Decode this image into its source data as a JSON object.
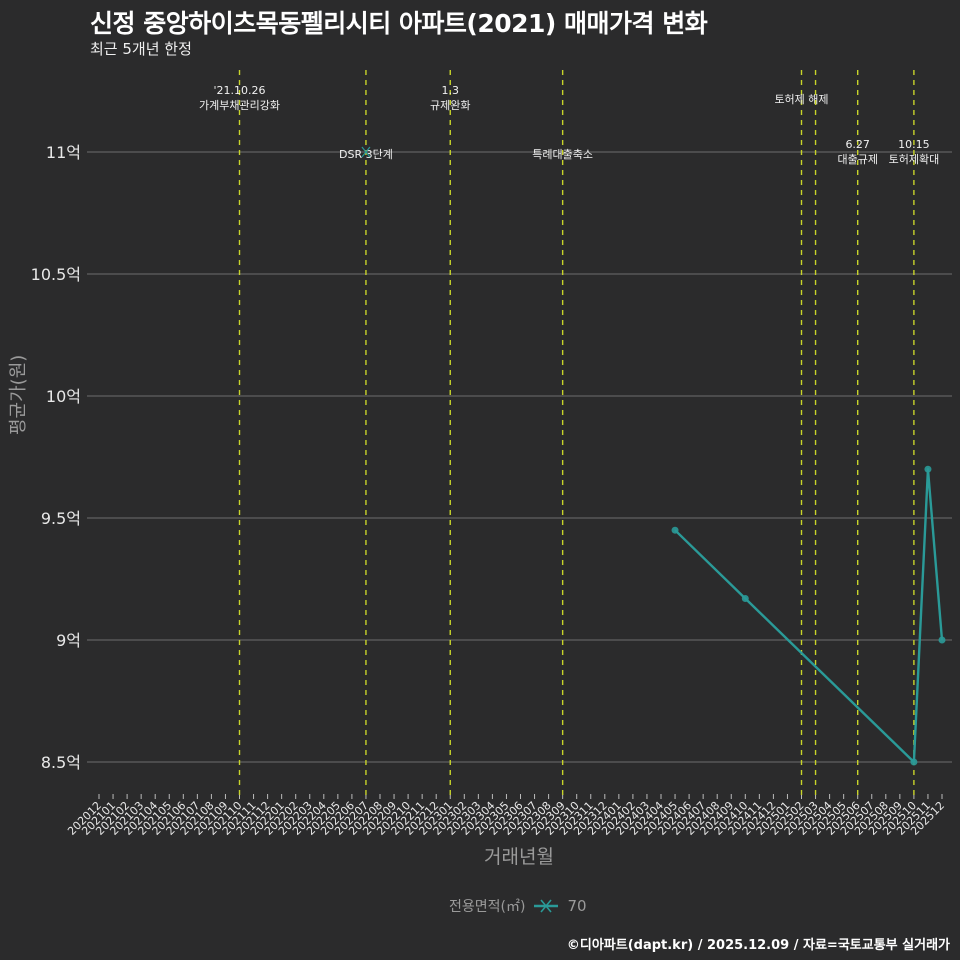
{
  "header": {
    "title": "신정 중앙하이츠목동펠리시티 아파트(2021) 매매가격 변화",
    "subtitle": "최근 5개년 한정"
  },
  "axes": {
    "ylabel": "평균가(원)",
    "xlabel": "거래년월"
  },
  "legend": {
    "title": "전용면적(㎡)",
    "value": "70"
  },
  "caption": "©디아파트(dapt.kr) / 2025.12.09 / 자료=국토교통부 실거래가",
  "colors": {
    "background": "#2b2b2c",
    "series": "#2a9a98",
    "event_line": "#c8d42a",
    "grid": "#6e6e6e"
  },
  "chart_data": {
    "type": "line",
    "title": "신정 중앙하이츠목동펠리시티 아파트(2021) 매매가격 변화",
    "subtitle": "최근 5개년 한정",
    "xlabel": "거래년월",
    "ylabel": "평균가(원)",
    "x_ticks": [
      "202012",
      "202101",
      "202102",
      "202103",
      "202104",
      "202105",
      "202106",
      "202107",
      "202108",
      "202109",
      "202110",
      "202111",
      "202112",
      "202201",
      "202202",
      "202203",
      "202204",
      "202205",
      "202206",
      "202207",
      "202208",
      "202209",
      "202210",
      "202211",
      "202212",
      "202301",
      "202302",
      "202303",
      "202304",
      "202305",
      "202306",
      "202307",
      "202308",
      "202309",
      "202310",
      "202311",
      "202312",
      "202401",
      "202402",
      "202403",
      "202404",
      "202405",
      "202406",
      "202407",
      "202408",
      "202409",
      "202410",
      "202411",
      "202412",
      "202501",
      "202502",
      "202503",
      "202504",
      "202505",
      "202506",
      "202507",
      "202508",
      "202509",
      "202510",
      "202511",
      "202512"
    ],
    "y_ticks": [
      {
        "value": 8.5,
        "label": "8.5억"
      },
      {
        "value": 9.0,
        "label": "9억"
      },
      {
        "value": 9.5,
        "label": "9.5억"
      },
      {
        "value": 10.0,
        "label": "10억"
      },
      {
        "value": 10.5,
        "label": "10.5억"
      },
      {
        "value": 11.0,
        "label": "11억"
      }
    ],
    "ylim": [
      8.42,
      11.2
    ],
    "grid": "horizontal",
    "legend_position": "bottom",
    "series": [
      {
        "name": "70",
        "x": [
          "202405",
          "202410",
          "202510",
          "202511",
          "202512"
        ],
        "values": [
          9.45,
          9.17,
          8.5,
          9.7,
          9.0
        ],
        "unit": "억"
      }
    ],
    "events": [
      {
        "x": "202110",
        "label_lines": [
          "'21.10.26",
          "가계부채관리강화"
        ],
        "y_pos": "top"
      },
      {
        "x": "202207",
        "label_lines": [
          "DSR 3단계"
        ],
        "y_pos": "mid"
      },
      {
        "x": "202301",
        "label_lines": [
          "1.3",
          "규제완화"
        ],
        "y_pos": "top"
      },
      {
        "x": "202309",
        "label_lines": [
          "특례대출축소"
        ],
        "y_pos": "mid"
      },
      {
        "x": "202502",
        "label_lines": [
          "토허제 해제"
        ],
        "y_pos": "upper"
      },
      {
        "x": "202503",
        "label_lines": [],
        "y_pos": "none"
      },
      {
        "x": "202506",
        "label_lines": [
          "6.27",
          "대출규제"
        ],
        "y_pos": "low"
      },
      {
        "x": "202510",
        "label_lines": [
          "10.15",
          "토허제확대"
        ],
        "y_pos": "low"
      }
    ]
  }
}
